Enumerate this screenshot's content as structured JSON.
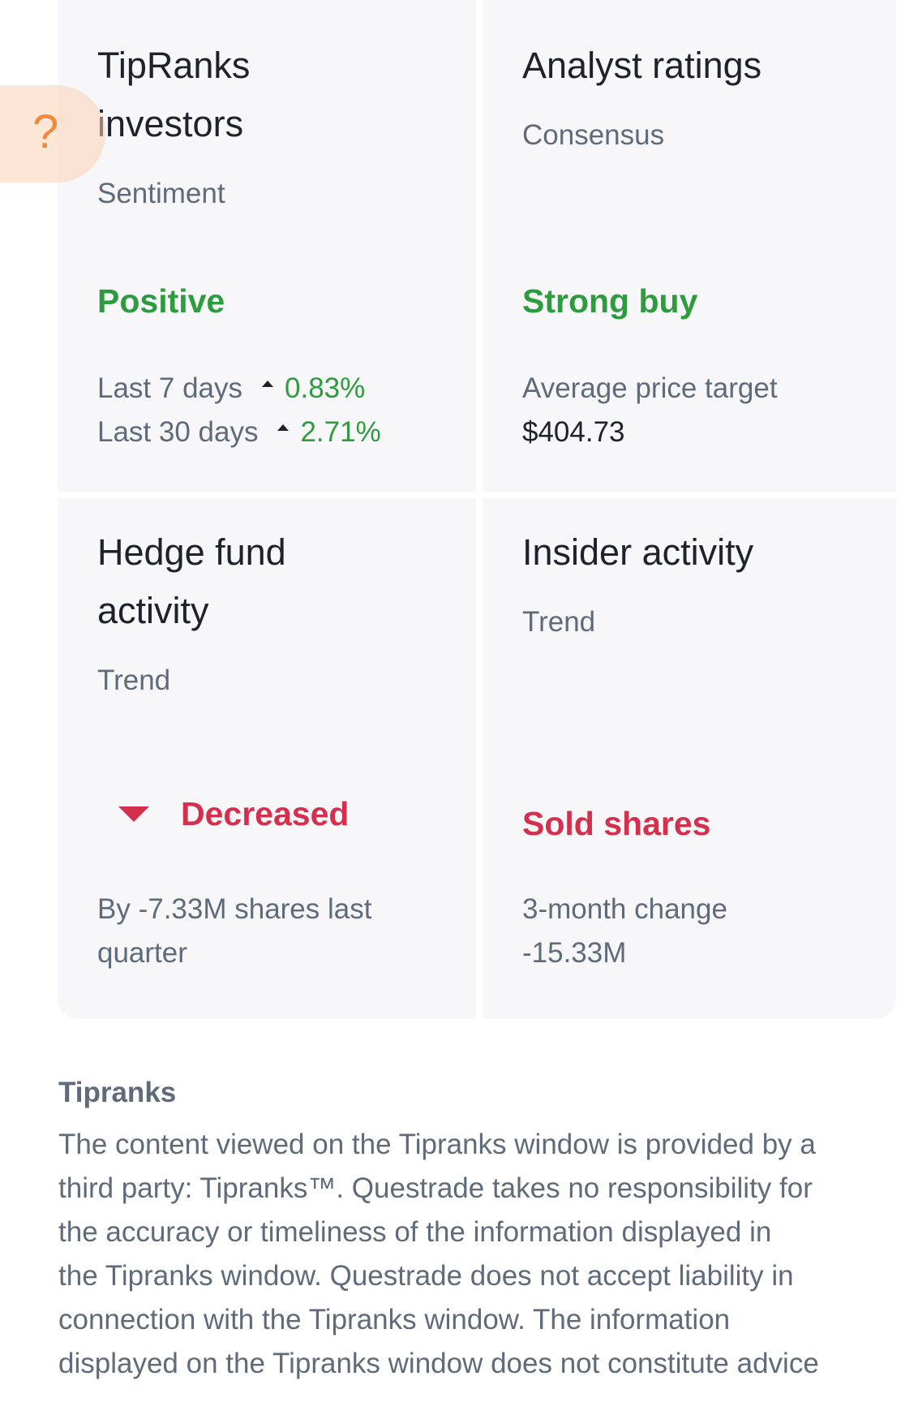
{
  "cards": {
    "tipranks_investors": {
      "title_line1": "TipRanks",
      "title_line2": "investors",
      "subtitle": "Sentiment",
      "status": "Positive",
      "rows": [
        {
          "label": "Last 7 days",
          "value": "0.83%"
        },
        {
          "label": "Last 30 days",
          "value": "2.71%"
        }
      ]
    },
    "analyst_ratings": {
      "title": "Analyst ratings",
      "subtitle": "Consensus",
      "status": "Strong buy",
      "detail_label": "Average price target",
      "detail_value": "$404.73"
    },
    "hedge_fund": {
      "title_line1": "Hedge fund",
      "title_line2": "activity",
      "subtitle": "Trend",
      "status": "Decreased",
      "detail_line1": "By -7.33M shares last",
      "detail_line2": "quarter"
    },
    "insider_activity": {
      "title": "Insider activity",
      "subtitle": "Trend",
      "status": "Sold shares",
      "detail_label": "3-month change",
      "detail_value": "-15.33M"
    }
  },
  "help_button": {
    "label": "?"
  },
  "disclaimer": {
    "heading": "Tipranks",
    "lines": [
      "The content viewed on the Tipranks window is provided by a",
      "third party: Tipranks™. Questrade takes no responsibility for",
      "the accuracy or timeliness of the information displayed in",
      "the Tipranks window. Questrade does not accept liability in",
      "connection with the Tipranks window. The information",
      "displayed on the Tipranks window does not constitute advice"
    ]
  },
  "colors": {
    "positive": "#2e9b3e",
    "negative": "#d4304d",
    "help_accent": "#f08a3a"
  }
}
